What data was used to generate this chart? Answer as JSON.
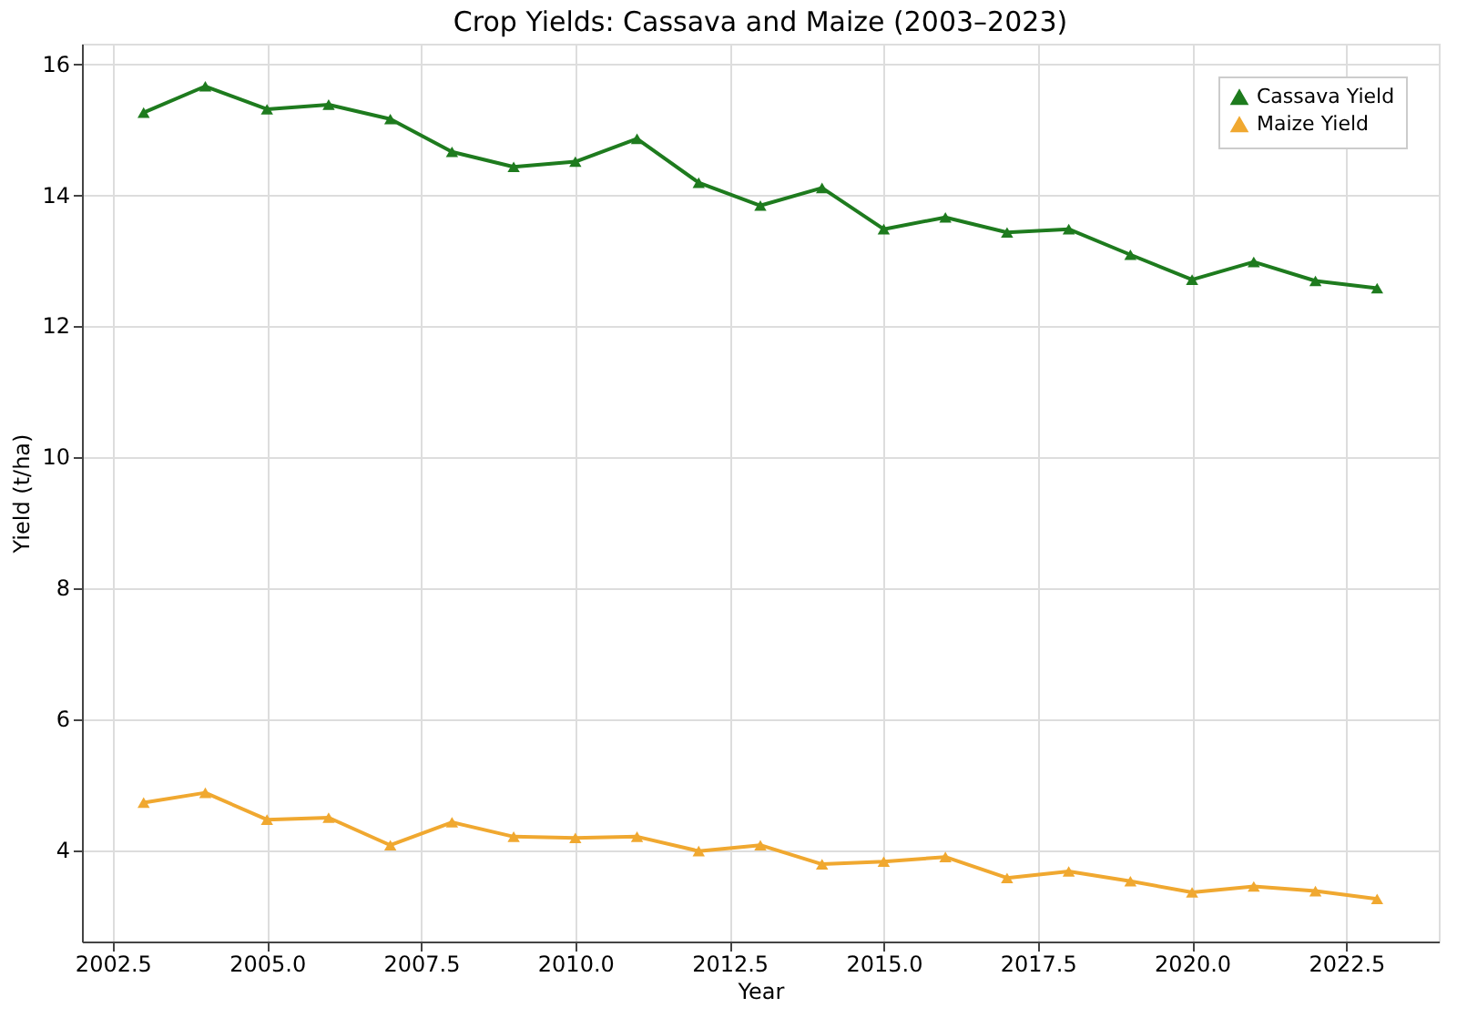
{
  "chart_data": {
    "type": "line",
    "title": "Crop Yields: Cassava and Maize (2003–2023)",
    "xlabel": "Year",
    "ylabel": "Yield (t/ha)",
    "x": [
      2003,
      2004,
      2005,
      2006,
      2007,
      2008,
      2009,
      2010,
      2011,
      2012,
      2013,
      2014,
      2015,
      2016,
      2017,
      2018,
      2019,
      2020,
      2021,
      2022,
      2023
    ],
    "series": [
      {
        "name": "Cassava Yield",
        "color": "#1e7b1e",
        "marker": "triangle",
        "values": [
          15.25,
          15.65,
          15.3,
          15.37,
          15.15,
          14.65,
          14.42,
          14.5,
          14.85,
          14.18,
          13.83,
          14.1,
          13.47,
          13.65,
          13.42,
          13.47,
          13.08,
          12.7,
          12.97,
          12.68,
          12.57
        ]
      },
      {
        "name": "Maize Yield",
        "color": "#f0a830",
        "marker": "triangle",
        "values": [
          4.72,
          4.87,
          4.46,
          4.49,
          4.07,
          4.42,
          4.2,
          4.18,
          4.2,
          3.98,
          4.07,
          3.78,
          3.82,
          3.89,
          3.57,
          3.67,
          3.52,
          3.35,
          3.44,
          3.37,
          3.25
        ]
      }
    ],
    "xlim": [
      2002.0,
      2024.0
    ],
    "xticks": [
      {
        "value": 2002.5,
        "label": "2002.5"
      },
      {
        "value": 2005,
        "label": "2005.0"
      },
      {
        "value": 2007.5,
        "label": "2007.5"
      },
      {
        "value": 2010,
        "label": "2010.0"
      },
      {
        "value": 2012.5,
        "label": "2012.5"
      },
      {
        "value": 2015,
        "label": "2015.0"
      },
      {
        "value": 2017.5,
        "label": "2017.5"
      },
      {
        "value": 2020,
        "label": "2020.0"
      },
      {
        "value": 2022.5,
        "label": "2022.5"
      }
    ],
    "ylim": [
      2.6,
      16.3
    ],
    "yticks": [
      4,
      6,
      8,
      10,
      12,
      14,
      16
    ],
    "grid": true,
    "legend": "top right",
    "line_style": "solid"
  }
}
